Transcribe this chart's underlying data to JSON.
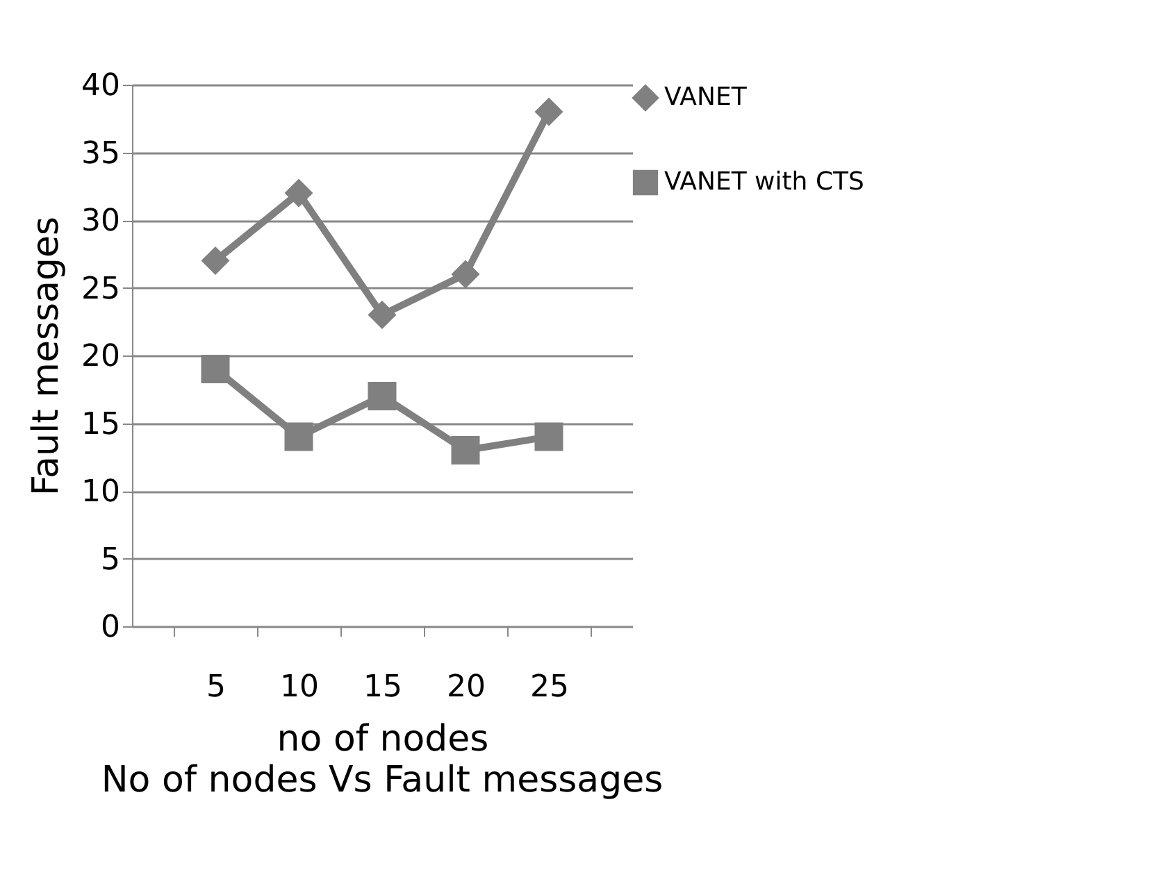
{
  "chart_data": {
    "type": "line",
    "title": "No of nodes Vs Fault messages",
    "xlabel": "no of nodes",
    "ylabel": "Fault messages",
    "categories": [
      "5",
      "10",
      "15",
      "20",
      "25"
    ],
    "series": [
      {
        "name": "VANET",
        "color": "#808080",
        "marker": "diamond",
        "values": [
          27,
          32,
          23,
          26,
          38
        ]
      },
      {
        "name": "VANET with CTS",
        "color": "#808080",
        "marker": "square",
        "values": [
          19,
          14,
          17,
          13,
          14
        ]
      }
    ],
    "ylim": [
      0,
      40
    ],
    "yticks": [
      0,
      5,
      10,
      15,
      20,
      25,
      30,
      35,
      40
    ],
    "grid": "y",
    "legend": "right",
    "line_style": "solid"
  }
}
